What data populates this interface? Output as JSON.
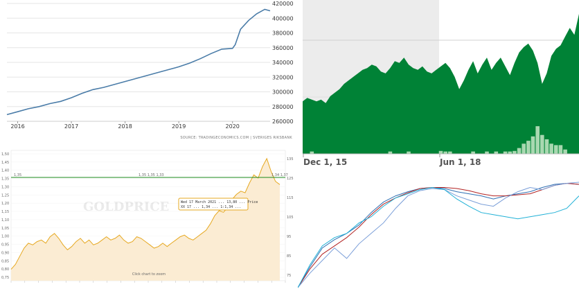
{
  "chart_data": [
    {
      "type": "line",
      "x_tick_labels": [
        "2016",
        "2017",
        "2018",
        "2019",
        "2020"
      ],
      "y_tick_labels": [
        "420000",
        "400000",
        "380000",
        "360000",
        "340000",
        "320000",
        "300000",
        "280000",
        "260000"
      ],
      "ylim": [
        260000,
        420000
      ],
      "xlim": [
        2015.8,
        2020.7
      ],
      "x": [
        2015.8,
        2016.0,
        2016.2,
        2016.4,
        2016.6,
        2016.8,
        2017.0,
        2017.2,
        2017.4,
        2017.6,
        2017.8,
        2018.0,
        2018.2,
        2018.4,
        2018.6,
        2018.8,
        2019.0,
        2019.2,
        2019.4,
        2019.6,
        2019.8,
        2020.0,
        2020.05,
        2020.15,
        2020.3,
        2020.45,
        2020.6,
        2020.7
      ],
      "values": [
        269000,
        273000,
        277000,
        280000,
        284000,
        287000,
        292000,
        298000,
        303000,
        306000,
        310000,
        314000,
        318000,
        322000,
        326000,
        330000,
        334000,
        339000,
        345000,
        352000,
        358000,
        359000,
        364000,
        385000,
        397000,
        406000,
        412000,
        410000
      ],
      "color": "#4a7ca8",
      "source_text": "SOURCE: TRADINGECONOMICS.COM | SVERIGES RIKSBANK"
    },
    {
      "type": "area",
      "x_tick_labels": [
        "Dec 1, 15",
        "Jun 1, 18"
      ],
      "values": [
        30,
        32,
        31,
        30,
        31,
        29,
        33,
        35,
        37,
        40,
        42,
        44,
        46,
        48,
        49,
        51,
        50,
        47,
        46,
        49,
        53,
        52,
        55,
        51,
        49,
        48,
        50,
        47,
        46,
        48,
        50,
        52,
        49,
        44,
        37,
        42,
        48,
        53,
        46,
        51,
        55,
        48,
        52,
        55,
        50,
        45,
        52,
        58,
        61,
        63,
        59,
        52,
        40,
        46,
        56,
        60,
        62,
        67,
        72,
        68,
        80
      ],
      "volume": [
        0,
        0,
        0.08,
        0,
        0,
        0,
        0,
        0,
        0,
        0,
        0,
        0,
        0,
        0,
        0,
        0,
        0,
        0,
        0,
        0.08,
        0,
        0,
        0,
        0.08,
        0,
        0,
        0,
        0,
        0,
        0,
        0.1,
        0.08,
        0.08,
        0,
        0,
        0,
        0,
        0.08,
        0,
        0,
        0.08,
        0,
        0.08,
        0,
        0.08,
        0.08,
        0.1,
        0.2,
        0.35,
        0.45,
        0.6,
        0.95,
        0.65,
        0.5,
        0.35,
        0.3,
        0.3,
        0.15,
        0,
        0,
        0
      ],
      "color": "#008236",
      "volume_color": "#a8d8b0"
    },
    {
      "type": "area",
      "y_tick_labels": [
        "1,50",
        "1,45",
        "1,40",
        "1,35",
        "1,30",
        "1,25",
        "1,20",
        "1,15",
        "1,10",
        "1,05",
        "1,00",
        "0,95",
        "0,90",
        "0,85",
        "0,80",
        "0,75"
      ],
      "right_tick_labels": [
        "135",
        "125",
        "115",
        "105",
        "95",
        "85",
        "75"
      ],
      "hline_label": "1,35 1,35 1,33",
      "hline_label_right": "1,34 1,37",
      "watermark": "GOLDPRICE",
      "tooltip": [
        "Wed 17 March 2021 ... 13,80 ... Price",
        "XX 17 ... 1,34 ... 1:1,34 ..."
      ],
      "footer": "Click chart to zoom",
      "values": [
        0.82,
        0.85,
        0.9,
        0.95,
        0.98,
        0.97,
        0.99,
        1.0,
        0.98,
        1.02,
        1.04,
        1.01,
        0.97,
        0.94,
        0.96,
        0.99,
        1.01,
        0.98,
        1.0,
        0.97,
        0.98,
        1.0,
        1.02,
        1.0,
        1.01,
        1.03,
        1.0,
        0.98,
        0.99,
        1.02,
        1.01,
        0.99,
        0.97,
        0.95,
        0.96,
        0.98,
        0.96,
        0.98,
        1.0,
        1.02,
        1.03,
        1.01,
        1.0,
        1.02,
        1.04,
        1.06,
        1.1,
        1.15,
        1.18,
        1.17,
        1.2,
        1.25,
        1.28,
        1.3,
        1.29,
        1.35,
        1.4,
        1.38,
        1.45,
        1.5,
        1.42,
        1.36,
        1.34
      ],
      "line_color": "#e6a820",
      "fill_color": "#fbecd3",
      "hline_color": "#1a8a1a"
    },
    {
      "type": "line",
      "series": [
        {
          "color": "#2d6fb3",
          "values": [
            0,
            20,
            38,
            46,
            52,
            60,
            72,
            82,
            88,
            92,
            95,
            96,
            95,
            92,
            90,
            88,
            85,
            88,
            90,
            92,
            96,
            99,
            100,
            99
          ]
        },
        {
          "color": "#b22222",
          "values": [
            0,
            18,
            32,
            40,
            48,
            58,
            70,
            80,
            86,
            91,
            95,
            96,
            96,
            95,
            93,
            90,
            88,
            88,
            89,
            90,
            94,
            98,
            100,
            99
          ]
        },
        {
          "color": "#7a9ed8",
          "values": [
            0,
            14,
            26,
            38,
            28,
            42,
            52,
            62,
            76,
            88,
            93,
            95,
            94,
            88,
            84,
            80,
            78,
            86,
            92,
            96,
            94,
            98,
            100,
            101
          ]
        },
        {
          "color": "#1fb0d6",
          "values": [
            0,
            22,
            40,
            48,
            52,
            62,
            68,
            78,
            86,
            90,
            94,
            96,
            94,
            85,
            78,
            72,
            70,
            68,
            66,
            68,
            70,
            72,
            76,
            88
          ]
        }
      ]
    }
  ]
}
